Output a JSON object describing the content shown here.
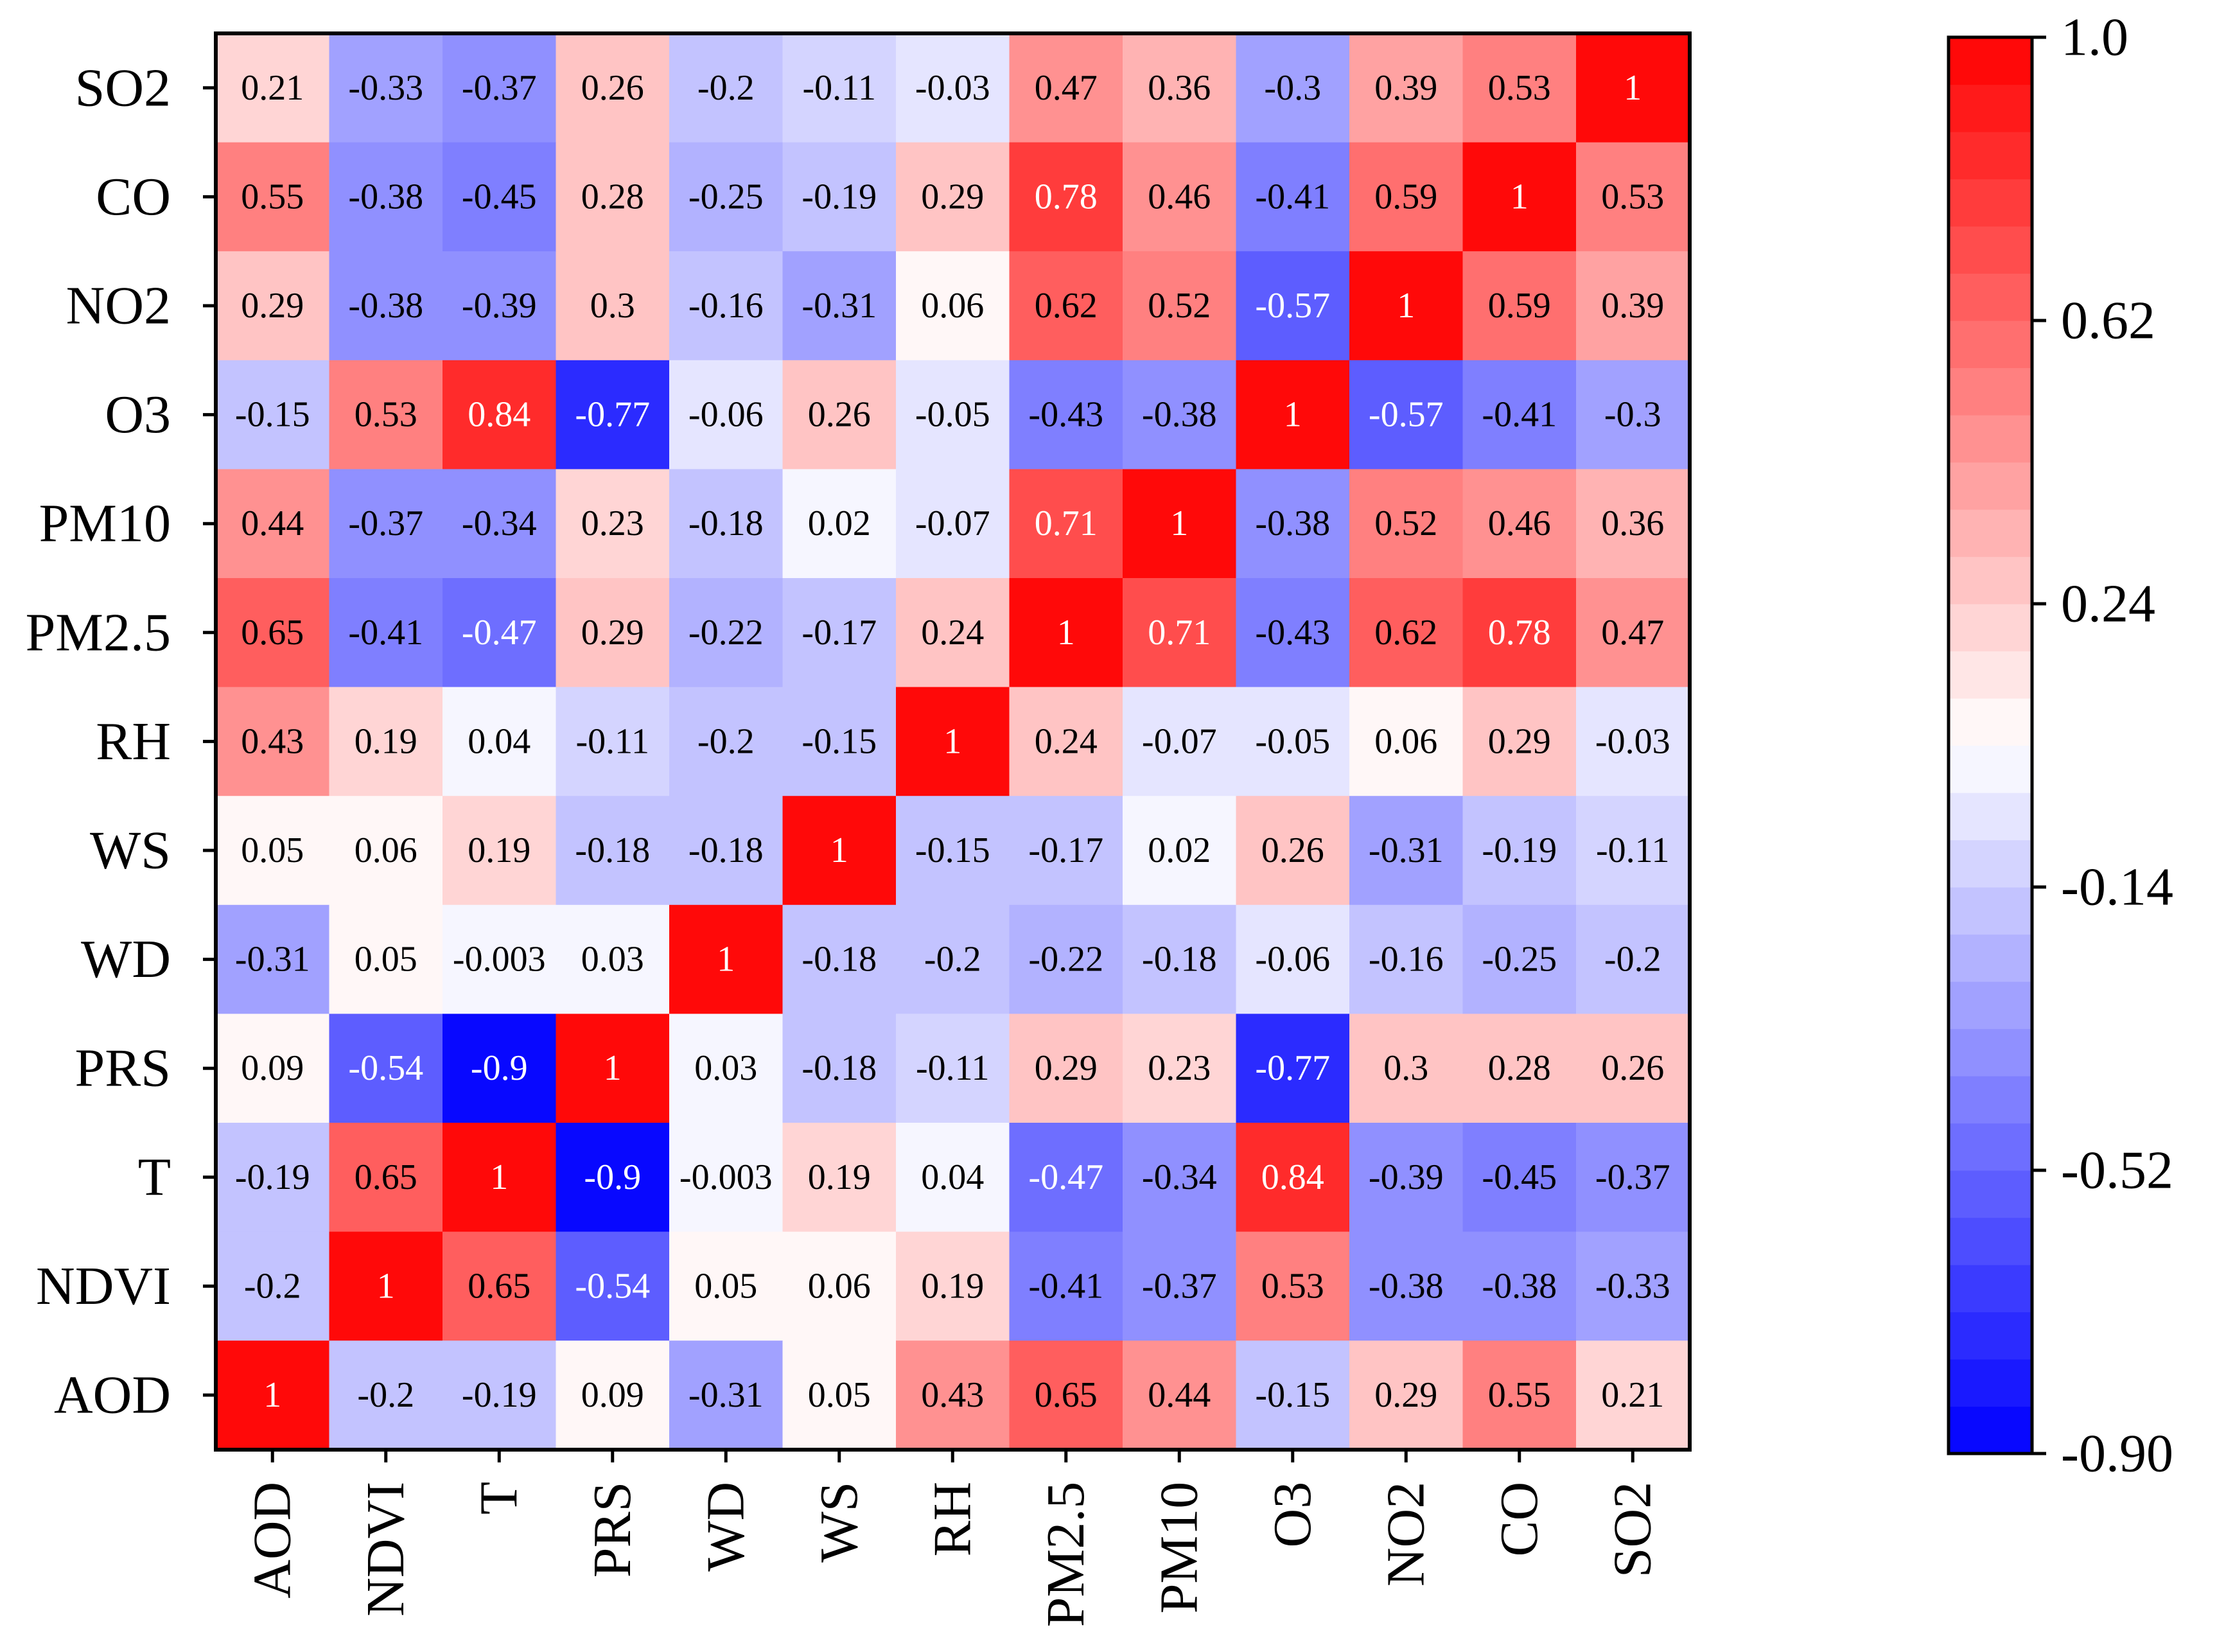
{
  "chart_data": {
    "type": "heatmap",
    "title": "",
    "xlabel": "",
    "ylabel": "",
    "x_categories": [
      "AOD",
      "NDVI",
      "T",
      "PRS",
      "WD",
      "WS",
      "RH",
      "PM2.5",
      "PM10",
      "O3",
      "NO2",
      "CO",
      "SO2"
    ],
    "y_categories_top_to_bottom": [
      "SO2",
      "CO",
      "NO2",
      "O3",
      "PM10",
      "PM2.5",
      "RH",
      "WS",
      "WD",
      "PRS",
      "T",
      "NDVI",
      "AOD"
    ],
    "matrix": [
      [
        "0.21",
        "-0.33",
        "-0.37",
        "0.26",
        "-0.2",
        "-0.11",
        "-0.03",
        "0.47",
        "0.36",
        "-0.3",
        "0.39",
        "0.53",
        "1"
      ],
      [
        "0.55",
        "-0.38",
        "-0.45",
        "0.28",
        "-0.25",
        "-0.19",
        "0.29",
        "0.78",
        "0.46",
        "-0.41",
        "0.59",
        "1",
        "0.53"
      ],
      [
        "0.29",
        "-0.38",
        "-0.39",
        "0.3",
        "-0.16",
        "-0.31",
        "0.06",
        "0.62",
        "0.52",
        "-0.57",
        "1",
        "0.59",
        "0.39"
      ],
      [
        "-0.15",
        "0.53",
        "0.84",
        "-0.77",
        "-0.06",
        "0.26",
        "-0.05",
        "-0.43",
        "-0.38",
        "1",
        "-0.57",
        "-0.41",
        "-0.3"
      ],
      [
        "0.44",
        "-0.37",
        "-0.34",
        "0.23",
        "-0.18",
        "0.02",
        "-0.07",
        "0.71",
        "1",
        "-0.38",
        "0.52",
        "0.46",
        "0.36"
      ],
      [
        "0.65",
        "-0.41",
        "-0.47",
        "0.29",
        "-0.22",
        "-0.17",
        "0.24",
        "1",
        "0.71",
        "-0.43",
        "0.62",
        "0.78",
        "0.47"
      ],
      [
        "0.43",
        "0.19",
        "0.04",
        "-0.11",
        "-0.2",
        "-0.15",
        "1",
        "0.24",
        "-0.07",
        "-0.05",
        "0.06",
        "0.29",
        "-0.03"
      ],
      [
        "0.05",
        "0.06",
        "0.19",
        "-0.18",
        "-0.18",
        "1",
        "-0.15",
        "-0.17",
        "0.02",
        "0.26",
        "-0.31",
        "-0.19",
        "-0.11"
      ],
      [
        "-0.31",
        "0.05",
        "-0.003",
        "0.03",
        "1",
        "-0.18",
        "-0.2",
        "-0.22",
        "-0.18",
        "-0.06",
        "-0.16",
        "-0.25",
        "-0.2"
      ],
      [
        "0.09",
        "-0.54",
        "-0.9",
        "1",
        "0.03",
        "-0.18",
        "-0.11",
        "0.29",
        "0.23",
        "-0.77",
        "0.3",
        "0.28",
        "0.26"
      ],
      [
        "-0.19",
        "0.65",
        "1",
        "-0.9",
        "-0.003",
        "0.19",
        "0.04",
        "-0.47",
        "-0.34",
        "0.84",
        "-0.39",
        "-0.45",
        "-0.37"
      ],
      [
        "-0.2",
        "1",
        "0.65",
        "-0.54",
        "0.05",
        "0.06",
        "0.19",
        "-0.41",
        "-0.37",
        "0.53",
        "-0.38",
        "-0.38",
        "-0.33"
      ],
      [
        "1",
        "-0.2",
        "-0.19",
        "0.09",
        "-0.31",
        "0.05",
        "0.43",
        "0.65",
        "0.44",
        "-0.15",
        "0.29",
        "0.55",
        "0.21"
      ]
    ],
    "colorbar": {
      "min": -0.9,
      "max": 1.0,
      "levels": 30,
      "ticks": [
        1.0,
        0.62,
        0.24,
        -0.14,
        -0.52,
        -0.9
      ],
      "tick_labels": [
        "1.0",
        "0.62",
        "0.24",
        "-0.14",
        "-0.52",
        "-0.90"
      ],
      "low_color": "#0000ff",
      "mid_color": "#ffffff",
      "high_color": "#ff0000",
      "center": 0.05
    },
    "grid": false,
    "legend": "right"
  }
}
